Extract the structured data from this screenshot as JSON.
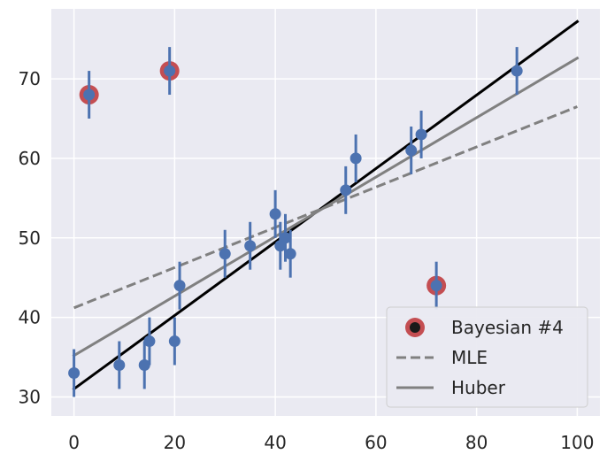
{
  "chart_data": {
    "type": "scatter",
    "title": "",
    "xlabel": "",
    "ylabel": "",
    "xlim": [
      -4.5,
      104.5
    ],
    "ylim": [
      27.6,
      78.8
    ],
    "grid": true,
    "xticks": [
      0,
      20,
      40,
      60,
      80,
      100
    ],
    "yticks": [
      30,
      40,
      50,
      60,
      70
    ],
    "xtick_labels": [
      "0",
      "20",
      "40",
      "60",
      "80",
      "100"
    ],
    "ytick_labels": [
      "30",
      "40",
      "50",
      "60",
      "70"
    ],
    "colors": {
      "background": "#eaeaf2",
      "grid": "#ffffff",
      "points": "#4c72b0",
      "outlier": "#c44e52",
      "true_line": "#000000",
      "mle": "#808080",
      "huber": "#808080"
    },
    "points": [
      {
        "x": 0,
        "y": 33,
        "err": 3
      },
      {
        "x": 3,
        "y": 68,
        "err": 3
      },
      {
        "x": 9,
        "y": 34,
        "err": 3
      },
      {
        "x": 14,
        "y": 34,
        "err": 3
      },
      {
        "x": 15,
        "y": 37,
        "err": 3
      },
      {
        "x": 19,
        "y": 71,
        "err": 3
      },
      {
        "x": 20,
        "y": 37,
        "err": 3
      },
      {
        "x": 21,
        "y": 44,
        "err": 3
      },
      {
        "x": 30,
        "y": 48,
        "err": 3
      },
      {
        "x": 35,
        "y": 49,
        "err": 3
      },
      {
        "x": 40,
        "y": 53,
        "err": 3
      },
      {
        "x": 41,
        "y": 49,
        "err": 3
      },
      {
        "x": 42,
        "y": 50,
        "err": 3
      },
      {
        "x": 43,
        "y": 48,
        "err": 3
      },
      {
        "x": 54,
        "y": 56,
        "err": 3
      },
      {
        "x": 56,
        "y": 60,
        "err": 3
      },
      {
        "x": 67,
        "y": 61,
        "err": 3
      },
      {
        "x": 69,
        "y": 63,
        "err": 3
      },
      {
        "x": 72,
        "y": 44,
        "err": 3
      },
      {
        "x": 88,
        "y": 71,
        "err": 3
      }
    ],
    "outliers": [
      {
        "x": 3,
        "y": 68
      },
      {
        "x": 19,
        "y": 71
      },
      {
        "x": 72,
        "y": 44
      }
    ],
    "lines": [
      {
        "name": "Bayesian #4",
        "x": [
          0,
          100
        ],
        "y": [
          31,
          77.2
        ],
        "style": "solid",
        "color": "#000000",
        "width": 3
      },
      {
        "name": "MLE",
        "x": [
          0,
          100
        ],
        "y": [
          41.2,
          66.5
        ],
        "style": "dashed",
        "color": "#808080",
        "width": 3
      },
      {
        "name": "Huber",
        "x": [
          0,
          100
        ],
        "y": [
          35.2,
          72.6
        ],
        "style": "solid",
        "color": "#808080",
        "width": 3
      }
    ],
    "legend": {
      "position": "lower-right",
      "entries": [
        {
          "label": "Bayesian #4",
          "kind": "marker"
        },
        {
          "label": "MLE",
          "kind": "dashed"
        },
        {
          "label": "Huber",
          "kind": "solid"
        }
      ]
    }
  }
}
